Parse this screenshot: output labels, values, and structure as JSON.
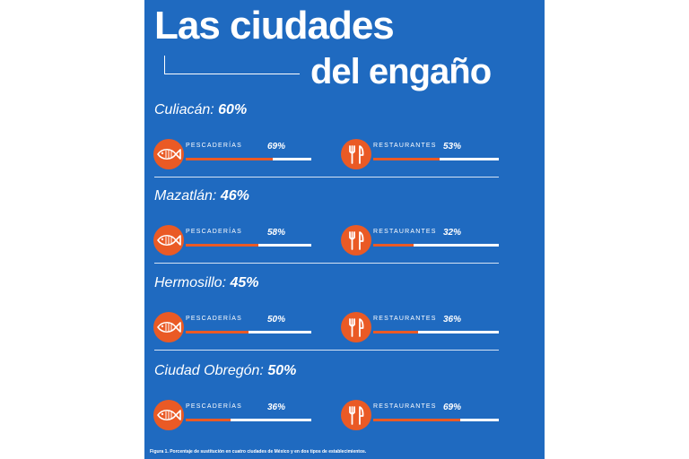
{
  "title": {
    "line1": "Las ciudades",
    "line2": "del engaño"
  },
  "chart_data": {
    "type": "bar",
    "title": "Las ciudades del engaño",
    "unit": "%",
    "xlim": [
      0,
      100
    ],
    "metrics": [
      "PESCADERÍAS",
      "RESTAURANTES"
    ],
    "cities": [
      {
        "name": "Culiacán:",
        "total_label": "60%",
        "total": 60,
        "items": [
          {
            "label": "PESCADERÍAS",
            "value": 69,
            "value_label": "69%",
            "icon": "fish-icon"
          },
          {
            "label": "RESTAURANTES",
            "value": 53,
            "value_label": "53%",
            "icon": "fork-knife-icon"
          }
        ]
      },
      {
        "name": "Mazatlán:",
        "total_label": "46%",
        "total": 46,
        "items": [
          {
            "label": "PESCADERÍAS",
            "value": 58,
            "value_label": "58%",
            "icon": "fish-icon"
          },
          {
            "label": "RESTAURANTES",
            "value": 32,
            "value_label": "32%",
            "icon": "fork-knife-icon"
          }
        ]
      },
      {
        "name": "Hermosillo:",
        "total_label": "45%",
        "total": 45,
        "items": [
          {
            "label": "PESCADERÍAS",
            "value": 50,
            "value_label": "50%",
            "icon": "fish-icon"
          },
          {
            "label": "RESTAURANTES",
            "value": 36,
            "value_label": "36%",
            "icon": "fork-knife-icon"
          }
        ]
      },
      {
        "name": "Ciudad Obregón:",
        "total_label": "50%",
        "total": 50,
        "items": [
          {
            "label": "PESCADERÍAS",
            "value": 36,
            "value_label": "36%",
            "icon": "fish-icon"
          },
          {
            "label": "RESTAURANTES",
            "value": 69,
            "value_label": "69%",
            "icon": "fork-knife-icon"
          }
        ]
      }
    ],
    "caption": "Figura 1. Porcentaje de sustitución en cuatro ciudades de México y en dos tipos de establecimientos."
  },
  "colors": {
    "background": "#1f6ac0",
    "accent": "#ea5a25",
    "track": "#ffffff",
    "text": "#ffffff"
  }
}
